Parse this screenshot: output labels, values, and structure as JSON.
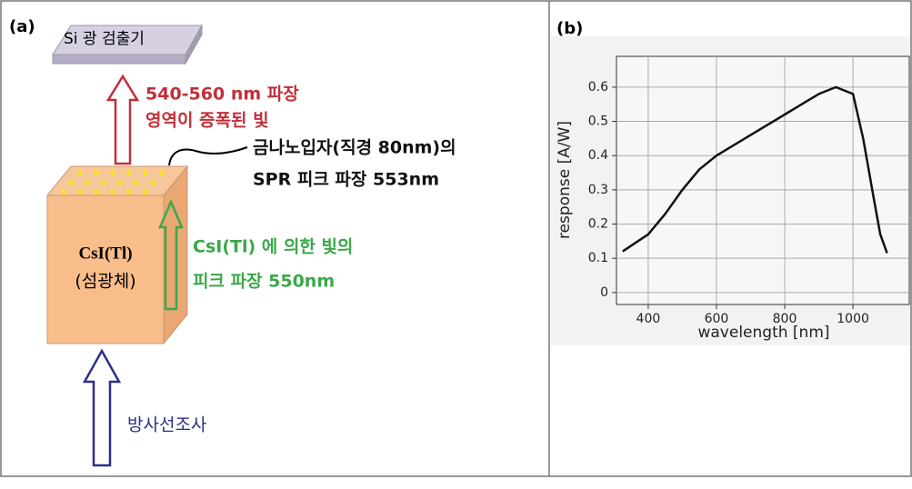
{
  "panel_a": {
    "label": "(a)",
    "detector": "Si 광 검출기",
    "amplified_light": [
      "540-560 nm 파장",
      "영역이 증폭된 빛"
    ],
    "nanoparticle": [
      "금나노입자(직경 80nm)의",
      "SPR 피크 파장 553nm"
    ],
    "scintillator": [
      "CsI(Tl)",
      "(섬광체)"
    ],
    "scintillator_light": [
      "CsI(Tl) 에 의한 빛의",
      "피크 파장 550nm"
    ],
    "radiation": "방사선조사"
  },
  "chart_data": {
    "type": "line",
    "title": "(b)",
    "x_label": "wavelength [nm]",
    "y_label": "response [A/W]",
    "x": [
      325,
      400,
      450,
      500,
      550,
      600,
      700,
      800,
      900,
      950,
      1000,
      1030,
      1060,
      1080,
      1100
    ],
    "values": [
      0.12,
      0.17,
      0.23,
      0.3,
      0.36,
      0.4,
      0.46,
      0.52,
      0.58,
      0.6,
      0.58,
      0.45,
      0.28,
      0.17,
      0.115
    ],
    "color": "#111111",
    "xlim": [
      307,
      1165
    ],
    "xticks": [
      400,
      600,
      800,
      1000
    ],
    "ylim": [
      -0.035,
      0.69
    ],
    "yticks": [
      0,
      0.1,
      0.2,
      0.3,
      0.4,
      0.5,
      0.6
    ],
    "grid": true
  }
}
